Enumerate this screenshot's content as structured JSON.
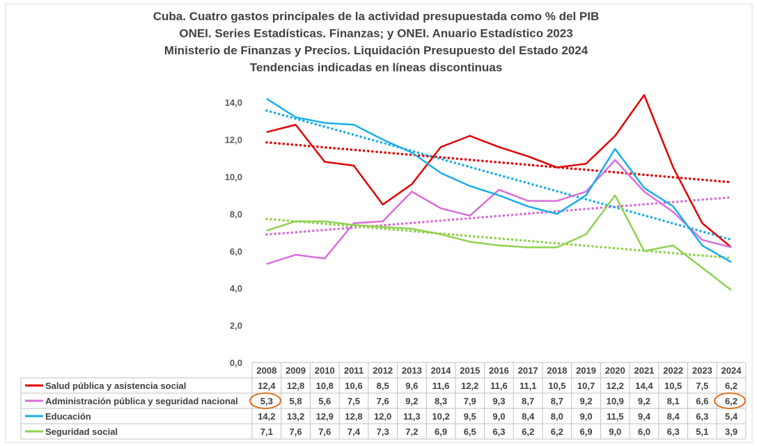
{
  "chart_data": {
    "type": "line",
    "title": [
      "Cuba. Cuatro gastos principales de la actividad presupuestada como % del PIB",
      "ONEI. Series Estadísticas. Finanzas; y ONEI. Anuario Estadístico 2023",
      "Ministerio de Finanzas y Precios. Liquidación Presupuesto del Estado 2024",
      "Tendencias indicadas en líneas discontinuas"
    ],
    "xlabel": "",
    "ylabel": "",
    "ylim": [
      0,
      14
    ],
    "yticks": [
      "0,0",
      "2,0",
      "4,0",
      "6,0",
      "8,0",
      "10,0",
      "12,0",
      "14,0"
    ],
    "grid": false,
    "legend": "data-table-below",
    "categories": [
      "2008",
      "2009",
      "2010",
      "2011",
      "2012",
      "2013",
      "2014",
      "2015",
      "2016",
      "2017",
      "2018",
      "2019",
      "2020",
      "2021",
      "2022",
      "2023",
      "2024"
    ],
    "series": [
      {
        "name": "Salud pública y asistencia social",
        "color": "#e00000",
        "values": [
          12.4,
          12.8,
          10.8,
          10.6,
          8.5,
          9.6,
          11.6,
          12.2,
          11.6,
          11.1,
          10.5,
          10.7,
          12.2,
          14.4,
          10.5,
          7.5,
          6.2
        ],
        "labels": [
          "12,4",
          "12,8",
          "10,8",
          "10,6",
          "8,5",
          "9,6",
          "11,6",
          "12,2",
          "11,6",
          "11,1",
          "10,5",
          "10,7",
          "12,2",
          "14,4",
          "10,5",
          "7,5",
          "6,2"
        ]
      },
      {
        "name": "Administración pública y seguridad nacional",
        "color": "#d86ed8",
        "values": [
          5.3,
          5.8,
          5.6,
          7.5,
          7.6,
          9.2,
          8.3,
          7.9,
          9.3,
          8.7,
          8.7,
          9.2,
          10.9,
          9.2,
          8.1,
          6.6,
          6.2
        ],
        "labels": [
          "5,3",
          "5,8",
          "5,6",
          "7,5",
          "7,6",
          "9,2",
          "8,3",
          "7,9",
          "9,3",
          "8,7",
          "8,7",
          "9,2",
          "10,9",
          "9,2",
          "8,1",
          "6,6",
          "6,2"
        ]
      },
      {
        "name": "Educación",
        "color": "#18aee8",
        "values": [
          14.2,
          13.2,
          12.9,
          12.8,
          12.0,
          11.3,
          10.2,
          9.5,
          9.0,
          8.4,
          8.0,
          9.0,
          11.5,
          9.4,
          8.4,
          6.3,
          5.4
        ],
        "labels": [
          "14,2",
          "13,2",
          "12,9",
          "12,8",
          "12,0",
          "11,3",
          "10,2",
          "9,5",
          "9,0",
          "8,4",
          "8,0",
          "9,0",
          "11,5",
          "9,4",
          "8,4",
          "6,3",
          "5,4"
        ]
      },
      {
        "name": "Seguridad social",
        "color": "#8fd14f",
        "values": [
          7.1,
          7.6,
          7.6,
          7.4,
          7.3,
          7.2,
          6.9,
          6.5,
          6.3,
          6.2,
          6.2,
          6.9,
          9.0,
          6.0,
          6.3,
          5.1,
          3.9
        ],
        "labels": [
          "7,1",
          "7,6",
          "7,6",
          "7,4",
          "7,3",
          "7,2",
          "6,9",
          "6,5",
          "6,3",
          "6,2",
          "6,2",
          "6,9",
          "9,0",
          "6,0",
          "6,3",
          "5,1",
          "3,9"
        ]
      }
    ],
    "annotations": [
      {
        "series": 1,
        "categories": [
          "2008",
          "2024"
        ],
        "type": "circle",
        "color": "#e07020"
      }
    ],
    "trendlines": "linear, dotted"
  }
}
